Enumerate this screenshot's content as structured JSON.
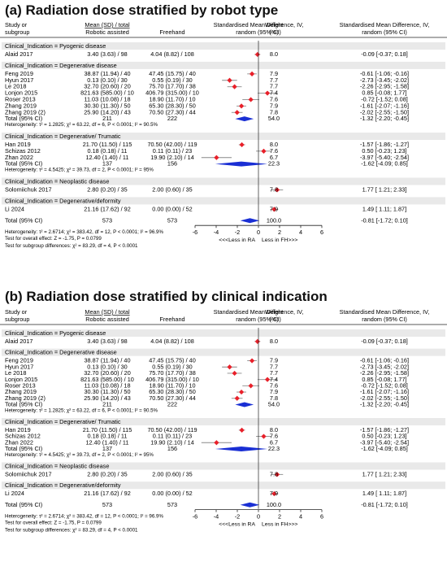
{
  "panels": [
    {
      "title": "(a) Radiation dose stratified by robot type",
      "header": {
        "study": [
          "Study or",
          "subgroup"
        ],
        "mean_sd_total": "Mean (SD) / total",
        "robotic": "Robotic assisted",
        "freehand": "Freehand",
        "smd": [
          "Standardised Mean Difference, IV,",
          "random (95% CI)"
        ],
        "weight": [
          "Weight",
          "(%)"
        ],
        "smd_right": [
          "Standardised Mean Difference, IV,",
          "random (95% CI)"
        ]
      },
      "footer": {
        "total_label": "Total (95% CI)",
        "total_robotic": "573",
        "total_freehand": "573",
        "total_weight": "100.0",
        "total_ci": "-0.81 [-1.72; 0.10]",
        "heterogeneity": "Heterogeneity: τ² = 2.6714; χ² = 383.42, df = 12, P < 0.0001; I² = 96.9%",
        "overall": "Test for overall effect: Z = -1.75, P = 0.0799",
        "subgroup_diff": "Test for subgroup differences: χ² = 83.29, df = 4, P < 0.0001"
      },
      "axis": {
        "ticks": [
          "-6",
          "-4",
          "-2",
          "0",
          "2",
          "4",
          "6"
        ],
        "left_label": "<<<Less in RA",
        "right_label": "Less in FH>>>"
      }
    },
    {
      "title": "(b) Radiation dose stratified by clinical indication",
      "header": {
        "study": [
          "Study or",
          "subgroup"
        ],
        "mean_sd_total": "Mean (SD) / total",
        "robotic": "Robotic assisted",
        "freehand": "Freehand",
        "smd": [
          "Standardised Mean Difference, IV,",
          "random (95% CI)"
        ],
        "weight": [
          "Weight",
          "(%)"
        ],
        "smd_right": [
          "Standardised Mean Difference, IV,",
          "random (95% CI)"
        ]
      },
      "footer": {
        "total_label": "Total (95% CI)",
        "total_robotic": "573",
        "total_freehand": "573",
        "total_weight": "100.0",
        "total_ci": "-0.81 [-1.72; 0.10]",
        "heterogeneity": "Heterogeneity: τ² = 2.6714; χ² = 383.42, df = 12, P < 0.0001; I² = 96.9%",
        "overall": "Test for overall effect: Z = -1.75, P = 0.0799",
        "subgroup_diff": "Test for subgroup differences: χ² = 83.29, df = 4, P < 0.0001"
      },
      "axis": {
        "ticks": [
          "-6",
          "-4",
          "-2",
          "0",
          "2",
          "4",
          "6"
        ],
        "left_label": "<<<Less in RA",
        "right_label": "Less in FH>>>"
      }
    }
  ],
  "chart_data": {
    "type": "forest",
    "xlim": [
      -6,
      6
    ],
    "groups": [
      {
        "label": "Clinical_Indication = Pyogenic disease",
        "studies": [
          {
            "study": "Alaid 2017",
            "robotic": "3.40 (3.63) / 98",
            "freehand": "4.04 (8.82) / 108",
            "weight": "8.0",
            "ci_text": "-0.09 [-0.37; 0.18]",
            "smd": -0.09,
            "lo": -0.37,
            "hi": 0.18
          }
        ]
      },
      {
        "label": "Clinical_Indication = Degenerative disease",
        "studies": [
          {
            "study": "Feng 2019",
            "robotic": "38.87 (11.94) / 40",
            "freehand": "47.45 (15.75) / 40",
            "weight": "7.9",
            "ci_text": "-0.61 [-1.06; -0.16]",
            "smd": -0.61,
            "lo": -1.06,
            "hi": -0.16
          },
          {
            "study": "Hyun 2017",
            "robotic": "0.13 (0.10) / 30",
            "freehand": "0.55 (0.19) / 30",
            "weight": "7.7",
            "ci_text": "-2.73 [-3.45; -2.02]",
            "smd": -2.73,
            "lo": -3.45,
            "hi": -2.02
          },
          {
            "study": "Le 2018",
            "robotic": "32.70 (20.60) / 20",
            "freehand": "75.70 (17.70) / 38",
            "weight": "7.7",
            "ci_text": "-2.26 [-2.95; -1.58]",
            "smd": -2.26,
            "lo": -2.95,
            "hi": -1.58
          },
          {
            "study": "Lonjon 2015",
            "robotic": "821.63 (585.00) / 10",
            "freehand": "406.79 (315.00) / 10",
            "weight": "7.4",
            "ci_text": "0.85 [-0.08; 1.77]",
            "smd": 0.85,
            "lo": -0.08,
            "hi": 1.77
          },
          {
            "study": "Roser 2013",
            "robotic": "11.03 (10.08) / 18",
            "freehand": "18.90 (11.70) / 10",
            "weight": "7.6",
            "ci_text": "-0.72 [-1.52; 0.08]",
            "smd": -0.72,
            "lo": -1.52,
            "hi": 0.08
          },
          {
            "study": "Zhang 2019",
            "robotic": "30.30 (11.30) / 50",
            "freehand": "65.30 (28.30) / 50",
            "weight": "7.9",
            "ci_text": "-1.61 [-2.07; -1.16]",
            "smd": -1.61,
            "lo": -2.07,
            "hi": -1.16
          },
          {
            "study": "Zhang 2019 (2)",
            "robotic": "25.90 (14.20) / 43",
            "freehand": "70.50 (27.30) / 44",
            "weight": "7.8",
            "ci_text": "-2.02 [-2.55; -1.50]",
            "smd": -2.02,
            "lo": -2.55,
            "hi": -1.5
          }
        ],
        "total": {
          "robotic": "211",
          "freehand": "222",
          "weight": "54.0",
          "ci_text": "-1.32 [-2.20; -0.45]",
          "smd": -1.32,
          "lo": -2.2,
          "hi": -0.45
        },
        "heterogeneity": "Heterogeneity: τ² = 1.2825; χ² = 63.22, df = 6, P < 0.0001; I² = 90.5%"
      },
      {
        "label": "Clinical_Indication = Degenerative/ Trumatic",
        "studies": [
          {
            "study": "Han 2019",
            "robotic": "21.70 (11.50) / 115",
            "freehand": "70.50 (42.00) / 119",
            "weight": "8.0",
            "ci_text": "-1.57 [-1.86; -1.27]",
            "smd": -1.57,
            "lo": -1.86,
            "hi": -1.27
          },
          {
            "study": "Schizas 2012",
            "robotic": "0.18 (0.18) / 11",
            "freehand": "0.11 (0.11) / 23",
            "weight": "7.6",
            "ci_text": "0.50 [-0.23; 1.23]",
            "smd": 0.5,
            "lo": -0.23,
            "hi": 1.23
          },
          {
            "study": "Zhan 2022",
            "robotic": "12.40 (1.40) / 11",
            "freehand": "19.90 (2.10) / 14",
            "weight": "6.7",
            "ci_text": "-3.97 [-5.40; -2.54]",
            "smd": -3.97,
            "lo": -5.4,
            "hi": -2.54
          }
        ],
        "total": {
          "robotic": "137",
          "freehand": "156",
          "weight": "22.3",
          "ci_text": "-1.62 [-4.09; 0.85]",
          "smd": -1.62,
          "lo": -4.09,
          "hi": 0.85
        },
        "heterogeneity": "Heterogeneity: τ² = 4.5425; χ² = 39.73, df = 2, P < 0.0001; I² = 95%"
      },
      {
        "label": "Clinical_Indication = Neoplastic disease",
        "studies": [
          {
            "study": "Solomiichuk 2017",
            "robotic": "2.80 (0.20) / 35",
            "freehand": "2.00 (0.60) / 35",
            "weight": "7.8",
            "ci_text": "1.77 [ 1.21; 2.33]",
            "smd": 1.77,
            "lo": 1.21,
            "hi": 2.33
          }
        ]
      },
      {
        "label": "Clinical_Indication = Degenerative/deformity",
        "studies": [
          {
            "study": "Li 2024",
            "robotic": "21.16 (17.62) / 92",
            "freehand": "0.00 (0.00) / 52",
            "weight": "7.9",
            "ci_text": "1.49 [ 1.11; 1.87]",
            "smd": 1.49,
            "lo": 1.11,
            "hi": 1.87
          }
        ]
      }
    ],
    "overall": {
      "smd": -0.81,
      "lo": -1.72,
      "hi": 0.1
    },
    "colors": {
      "point": "#e8202a",
      "diamond": "#1a2fd4",
      "ci_line": "#888888",
      "group_band": "#e9e9e9"
    }
  }
}
